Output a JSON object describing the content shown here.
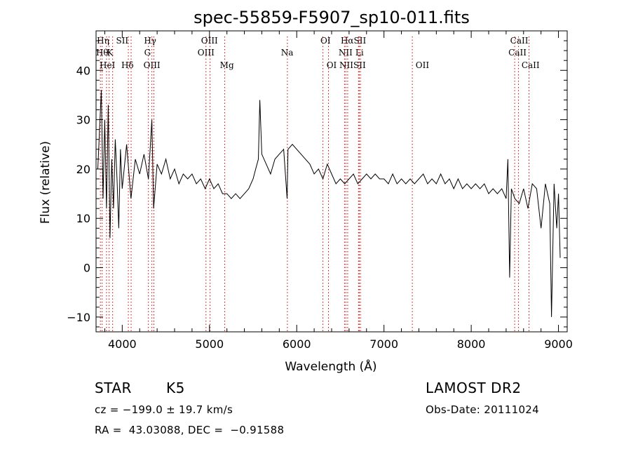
{
  "chart_data": {
    "type": "line",
    "title": "spec-55859-F5907_sp10-011.fits",
    "xlabel": "Wavelength (Å)",
    "ylabel": "Flux (relative)",
    "xlim": [
      3700,
      9100
    ],
    "ylim": [
      -13,
      48
    ],
    "xticks": [
      4000,
      5000,
      6000,
      7000,
      8000,
      9000
    ],
    "yticks": [
      -10,
      0,
      10,
      20,
      30,
      40
    ],
    "grid": false,
    "line_color": "#000000",
    "marker_color": "#cc0000",
    "series": [
      {
        "x": [
          3720,
          3740,
          3760,
          3780,
          3800,
          3820,
          3840,
          3860,
          3880,
          3900,
          3920,
          3940,
          3960,
          3980,
          4000,
          4050,
          4100,
          4150,
          4200,
          4250,
          4300,
          4340,
          4360,
          4400,
          4450,
          4500,
          4550,
          4600,
          4650,
          4700,
          4750,
          4800,
          4850,
          4900,
          4950,
          5000,
          5050,
          5100,
          5150,
          5200,
          5250,
          5300,
          5350,
          5400,
          5450,
          5500,
          5530,
          5560,
          5577,
          5600,
          5650,
          5700,
          5750,
          5800,
          5850,
          5890,
          5900,
          5950,
          6000,
          6050,
          6100,
          6150,
          6200,
          6250,
          6300,
          6350,
          6400,
          6450,
          6500,
          6550,
          6600,
          6650,
          6700,
          6750,
          6800,
          6850,
          6900,
          6950,
          7000,
          7050,
          7100,
          7150,
          7200,
          7250,
          7300,
          7350,
          7400,
          7450,
          7500,
          7550,
          7600,
          7650,
          7700,
          7750,
          7800,
          7850,
          7900,
          7950,
          8000,
          8050,
          8100,
          8150,
          8200,
          8250,
          8300,
          8350,
          8400,
          8420,
          8440,
          8460,
          8500,
          8550,
          8600,
          8650,
          8700,
          8750,
          8800,
          8850,
          8900,
          8920,
          8950,
          8980,
          9000,
          9020
        ],
        "y": [
          20,
          28,
          36,
          14,
          30,
          12,
          33,
          6,
          22,
          12,
          26,
          18,
          8,
          24,
          16,
          25,
          14,
          22,
          19,
          23,
          18,
          30,
          12,
          21,
          19,
          22,
          18,
          20,
          17,
          19,
          18,
          19,
          17,
          18,
          16,
          18,
          16,
          17,
          15,
          15,
          14,
          15,
          14,
          15,
          16,
          18,
          20,
          22,
          34,
          23,
          21,
          19,
          22,
          23,
          24,
          14,
          24,
          25,
          24,
          23,
          22,
          21,
          19,
          20,
          18,
          21,
          19,
          17,
          18,
          17,
          18,
          19,
          17,
          18,
          19,
          18,
          19,
          18,
          18,
          17,
          19,
          17,
          18,
          17,
          18,
          17,
          18,
          19,
          17,
          18,
          17,
          19,
          17,
          18,
          16,
          18,
          16,
          17,
          16,
          17,
          16,
          17,
          15,
          16,
          15,
          16,
          14,
          22,
          -2,
          16,
          14,
          13,
          16,
          12,
          17,
          16,
          8,
          17,
          13,
          -10,
          17,
          8,
          15,
          2
        ]
      }
    ],
    "lines": [
      {
        "x": 3750,
        "label": "Hη"
      },
      {
        "x": 3770,
        "label": "Hθ"
      },
      {
        "x": 3820,
        "label": "HeI"
      },
      {
        "x": 3850,
        "label": "K"
      },
      {
        "x": 3890,
        "label": "Hε"
      },
      {
        "x": 4070,
        "label": "SII"
      },
      {
        "x": 4102,
        "label": "Hδ"
      },
      {
        "x": 4300,
        "label": "G"
      },
      {
        "x": 4340,
        "label": "Hγ"
      },
      {
        "x": 4363,
        "label": "OIII"
      },
      {
        "x": 4960,
        "label": "OIII"
      },
      {
        "x": 5007,
        "label": "OIII"
      },
      {
        "x": 5175,
        "label": "Mg"
      },
      {
        "x": 5893,
        "label": "Na"
      },
      {
        "x": 6300,
        "label": "OI"
      },
      {
        "x": 6364,
        "label": "OI"
      },
      {
        "x": 6548,
        "label": "NII"
      },
      {
        "x": 6563,
        "label": "Hα"
      },
      {
        "x": 6584,
        "label": "NII"
      },
      {
        "x": 6708,
        "label": "Li"
      },
      {
        "x": 6717,
        "label": "SII"
      },
      {
        "x": 6731,
        "label": "SII"
      },
      {
        "x": 7325,
        "label": "OII"
      },
      {
        "x": 8498,
        "label": "CaII"
      },
      {
        "x": 8542,
        "label": "CaII"
      },
      {
        "x": 8662,
        "label": "CaII"
      }
    ],
    "line_labels": [
      {
        "text": "Hη",
        "x": 3780,
        "row": 0
      },
      {
        "text": "SII",
        "x": 4000,
        "row": 0
      },
      {
        "text": "Hγ",
        "x": 4320,
        "row": 0
      },
      {
        "text": "OIII",
        "x": 5000,
        "row": 0
      },
      {
        "text": "OI",
        "x": 6330,
        "row": 0
      },
      {
        "text": "HαSII",
        "x": 6650,
        "row": 0
      },
      {
        "text": "CaII",
        "x": 8550,
        "row": 0
      },
      {
        "text": "Hθ",
        "x": 3770,
        "row": 1
      },
      {
        "text": "K",
        "x": 3860,
        "row": 1
      },
      {
        "text": "G",
        "x": 4290,
        "row": 1
      },
      {
        "text": "OIII",
        "x": 4960,
        "row": 1
      },
      {
        "text": "Na",
        "x": 5890,
        "row": 1
      },
      {
        "text": "NII",
        "x": 6560,
        "row": 1
      },
      {
        "text": "Li",
        "x": 6720,
        "row": 1
      },
      {
        "text": "CaII",
        "x": 8530,
        "row": 1
      },
      {
        "text": "HeI",
        "x": 3830,
        "row": 2
      },
      {
        "text": "Hδ",
        "x": 4060,
        "row": 2
      },
      {
        "text": "OIII",
        "x": 4340,
        "row": 2
      },
      {
        "text": "Mg",
        "x": 5200,
        "row": 2
      },
      {
        "text": "OI",
        "x": 6400,
        "row": 2
      },
      {
        "text": "NIISII",
        "x": 6640,
        "row": 2
      },
      {
        "text": "OII",
        "x": 7440,
        "row": 2
      },
      {
        "text": "CaII",
        "x": 8680,
        "row": 2
      }
    ]
  },
  "info": {
    "object_type": "STAR",
    "subclass": "K5",
    "survey": "LAMOST DR2",
    "redshift_text": "cz = −199.0 ± 19.7 km/s",
    "obs_date_text": "Obs-Date: 20111024",
    "coords_text": "RA =  43.03088, DEC =  −0.91588"
  }
}
